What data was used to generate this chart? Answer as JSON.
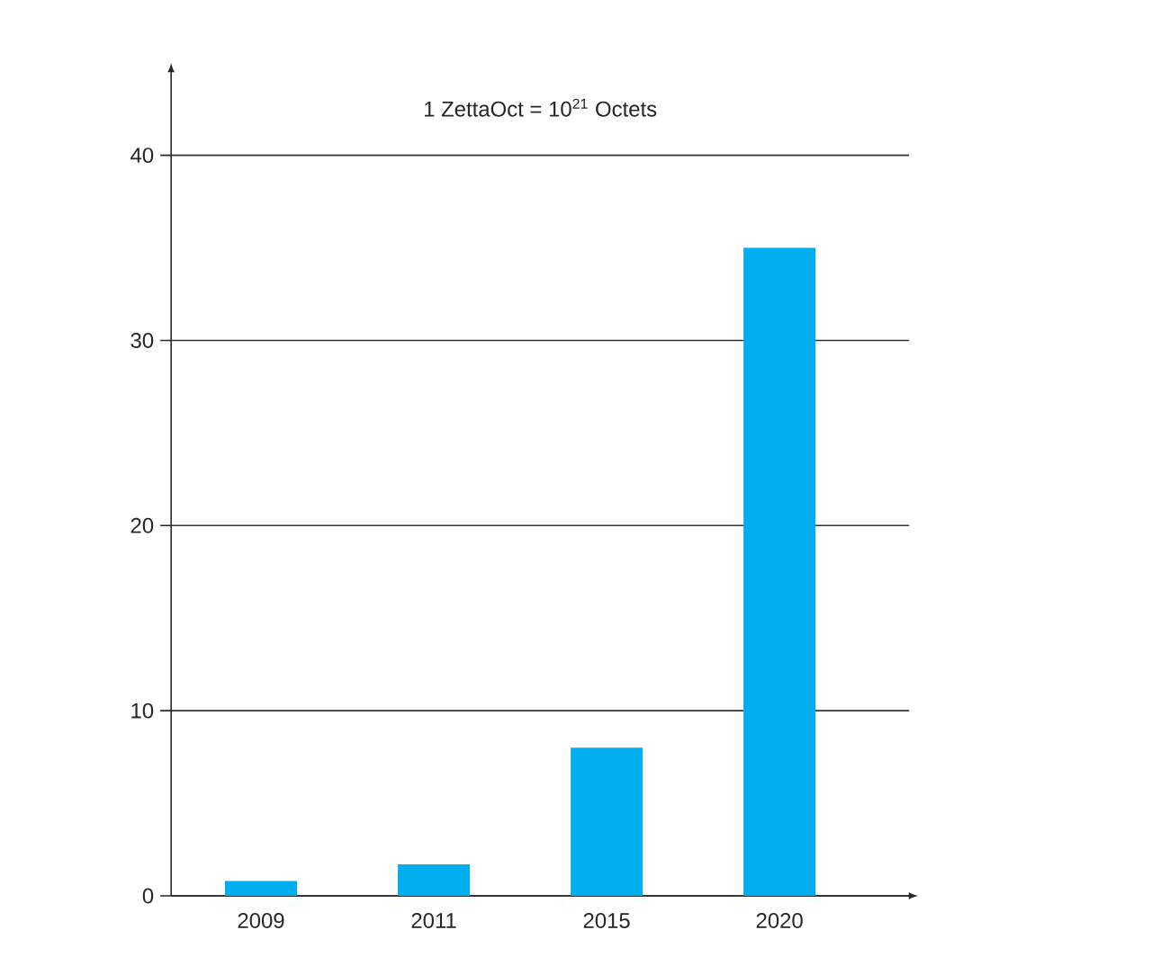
{
  "chart_data": {
    "type": "bar",
    "title": "1 ZettaOct = 10$^{21}$ Octets",
    "categories": [
      "2009",
      "2011",
      "2015",
      "2020"
    ],
    "values": [
      0.8,
      1.7,
      8,
      35
    ],
    "color": "#00adef",
    "ylim": [
      0,
      44.5
    ],
    "yticks": [
      0,
      10,
      20,
      30,
      40
    ],
    "grid": "y"
  }
}
